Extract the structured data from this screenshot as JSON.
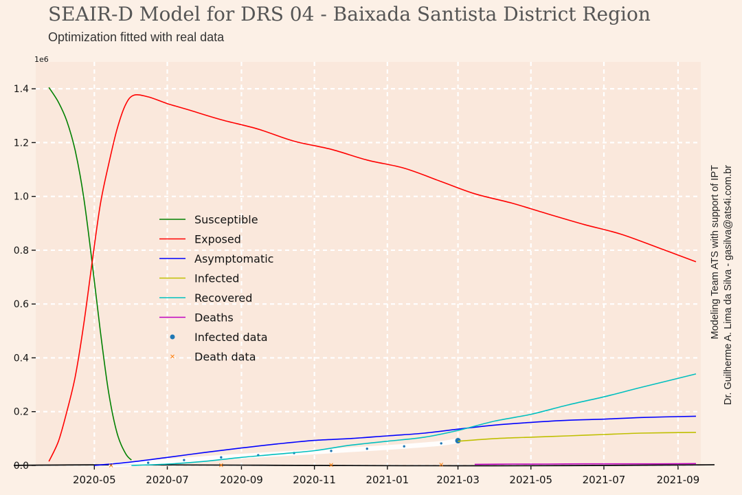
{
  "colors": {
    "background": "#fcf0e6",
    "plot_bg": "#fae8dc",
    "grid": "#ffffff",
    "axis": "#111111",
    "text": "#111111",
    "susceptible": "#008000",
    "exposed": "#ff0000",
    "asymptomatic": "#0000ff",
    "infected": "#bfbf00",
    "recovered": "#00bfbf",
    "deaths": "#bf00bf",
    "infected_data": "#1f77b4",
    "death_data": "#ff7f0e"
  },
  "header": {
    "title": "SEAIR-D Model for DRS 04 - Baixada Santista District Region",
    "subtitle": "Optimization fitted with real data"
  },
  "credits": {
    "line1": "Modeling Team ATS with support of IPT",
    "line2": "Dr. Guilherme A. Lima da Silva - gasilva@ats4i.com.br"
  },
  "chart_data": {
    "type": "line",
    "title": "SEAIR-D Model for DRS 04 - Baixada Santista District Region",
    "subtitle": "Optimization fitted with real data",
    "xlabel": "",
    "ylabel": "",
    "y_multiplier_label": "1e6",
    "xlim": [
      "2020-03-13",
      "2021-09-20"
    ],
    "ylim": [
      0,
      1.5
    ],
    "x_ticks": [
      "2020-05",
      "2020-07",
      "2020-09",
      "2020-11",
      "2021-01",
      "2021-03",
      "2021-05",
      "2021-07",
      "2021-09"
    ],
    "y_ticks": [
      "0.0",
      "0.2",
      "0.4",
      "0.6",
      "0.8",
      "1.0",
      "1.2",
      "1.4"
    ],
    "grid": true,
    "legend_position": "center-left",
    "series": [
      {
        "name": "Susceptible",
        "color_key": "susceptible",
        "kind": "line",
        "x": [
          "2020-03-24",
          "2020-04-01",
          "2020-04-08",
          "2020-04-15",
          "2020-04-22",
          "2020-04-29",
          "2020-05-06",
          "2020-05-13",
          "2020-05-20",
          "2020-05-27",
          "2020-06-01"
        ],
        "y": [
          1.405,
          1.35,
          1.28,
          1.17,
          1.0,
          0.76,
          0.5,
          0.27,
          0.12,
          0.045,
          0.02
        ]
      },
      {
        "name": "Exposed",
        "color_key": "exposed",
        "kind": "line",
        "x": [
          "2020-03-24",
          "2020-04-01",
          "2020-04-08",
          "2020-04-15",
          "2020-04-22",
          "2020-04-29",
          "2020-05-06",
          "2020-05-13",
          "2020-05-20",
          "2020-05-27",
          "2020-06-03",
          "2020-06-15",
          "2020-07-01",
          "2020-07-20",
          "2020-08-15",
          "2020-09-15",
          "2020-10-15",
          "2020-11-15",
          "2020-12-15",
          "2021-01-15",
          "2021-02-15",
          "2021-03-15",
          "2021-04-15",
          "2021-05-15",
          "2021-06-15",
          "2021-07-15",
          "2021-08-15",
          "2021-09-16"
        ],
        "y": [
          0.015,
          0.09,
          0.2,
          0.33,
          0.52,
          0.75,
          0.97,
          1.12,
          1.25,
          1.34,
          1.376,
          1.37,
          1.345,
          1.32,
          1.285,
          1.25,
          1.205,
          1.175,
          1.135,
          1.105,
          1.055,
          1.01,
          0.975,
          0.935,
          0.895,
          0.86,
          0.81,
          0.757
        ]
      },
      {
        "name": "Asymptomatic",
        "color_key": "asymptomatic",
        "kind": "line",
        "x": [
          "2020-05-01",
          "2020-06-01",
          "2020-07-01",
          "2020-08-01",
          "2020-09-01",
          "2020-10-01",
          "2020-11-01",
          "2020-12-01",
          "2021-01-01",
          "2021-02-01",
          "2021-03-01",
          "2021-04-01",
          "2021-05-01",
          "2021-06-01",
          "2021-07-01",
          "2021-08-01",
          "2021-09-16"
        ],
        "y": [
          0.0,
          0.013,
          0.03,
          0.048,
          0.065,
          0.08,
          0.093,
          0.1,
          0.11,
          0.12,
          0.135,
          0.15,
          0.16,
          0.168,
          0.172,
          0.178,
          0.183
        ]
      },
      {
        "name": "Infected",
        "color_key": "infected",
        "kind": "line",
        "x": [
          "2021-03-01",
          "2021-04-01",
          "2021-05-01",
          "2021-06-01",
          "2021-07-01",
          "2021-08-01",
          "2021-09-16"
        ],
        "y": [
          0.09,
          0.1,
          0.105,
          0.11,
          0.115,
          0.12,
          0.123
        ]
      },
      {
        "name": "Recovered",
        "color_key": "recovered",
        "kind": "line",
        "x": [
          "2020-06-01",
          "2020-07-01",
          "2020-08-01",
          "2020-09-01",
          "2020-10-01",
          "2020-11-01",
          "2020-12-01",
          "2021-01-01",
          "2021-02-01",
          "2021-03-01",
          "2021-04-01",
          "2021-05-01",
          "2021-06-01",
          "2021-07-01",
          "2021-08-01",
          "2021-09-16"
        ],
        "y": [
          0.0,
          0.005,
          0.015,
          0.03,
          0.042,
          0.055,
          0.075,
          0.09,
          0.105,
          0.13,
          0.165,
          0.19,
          0.225,
          0.255,
          0.29,
          0.34
        ]
      },
      {
        "name": "Deaths",
        "color_key": "deaths",
        "kind": "line",
        "x": [
          "2021-03-15",
          "2021-04-15",
          "2021-05-15",
          "2021-06-15",
          "2021-07-15",
          "2021-08-15",
          "2021-09-16"
        ],
        "y": [
          0.004,
          0.005,
          0.005,
          0.006,
          0.006,
          0.006,
          0.007
        ]
      },
      {
        "name": "Infected data",
        "color_key": "infected_data",
        "kind": "scatter",
        "x": [
          "2020-05-15",
          "2020-06-15",
          "2020-07-15",
          "2020-08-15",
          "2020-09-15",
          "2020-10-15",
          "2020-11-15",
          "2020-12-15",
          "2021-01-15",
          "2021-02-15",
          "2021-03-01"
        ],
        "y": [
          0.002,
          0.01,
          0.02,
          0.03,
          0.038,
          0.046,
          0.054,
          0.062,
          0.071,
          0.082,
          0.092
        ]
      },
      {
        "name": "Death data",
        "color_key": "death_data",
        "kind": "scatter",
        "x": [
          "2020-05-15",
          "2020-08-15",
          "2020-11-15",
          "2021-02-15"
        ],
        "y": [
          0.0,
          0.001,
          0.002,
          0.003
        ]
      }
    ]
  }
}
